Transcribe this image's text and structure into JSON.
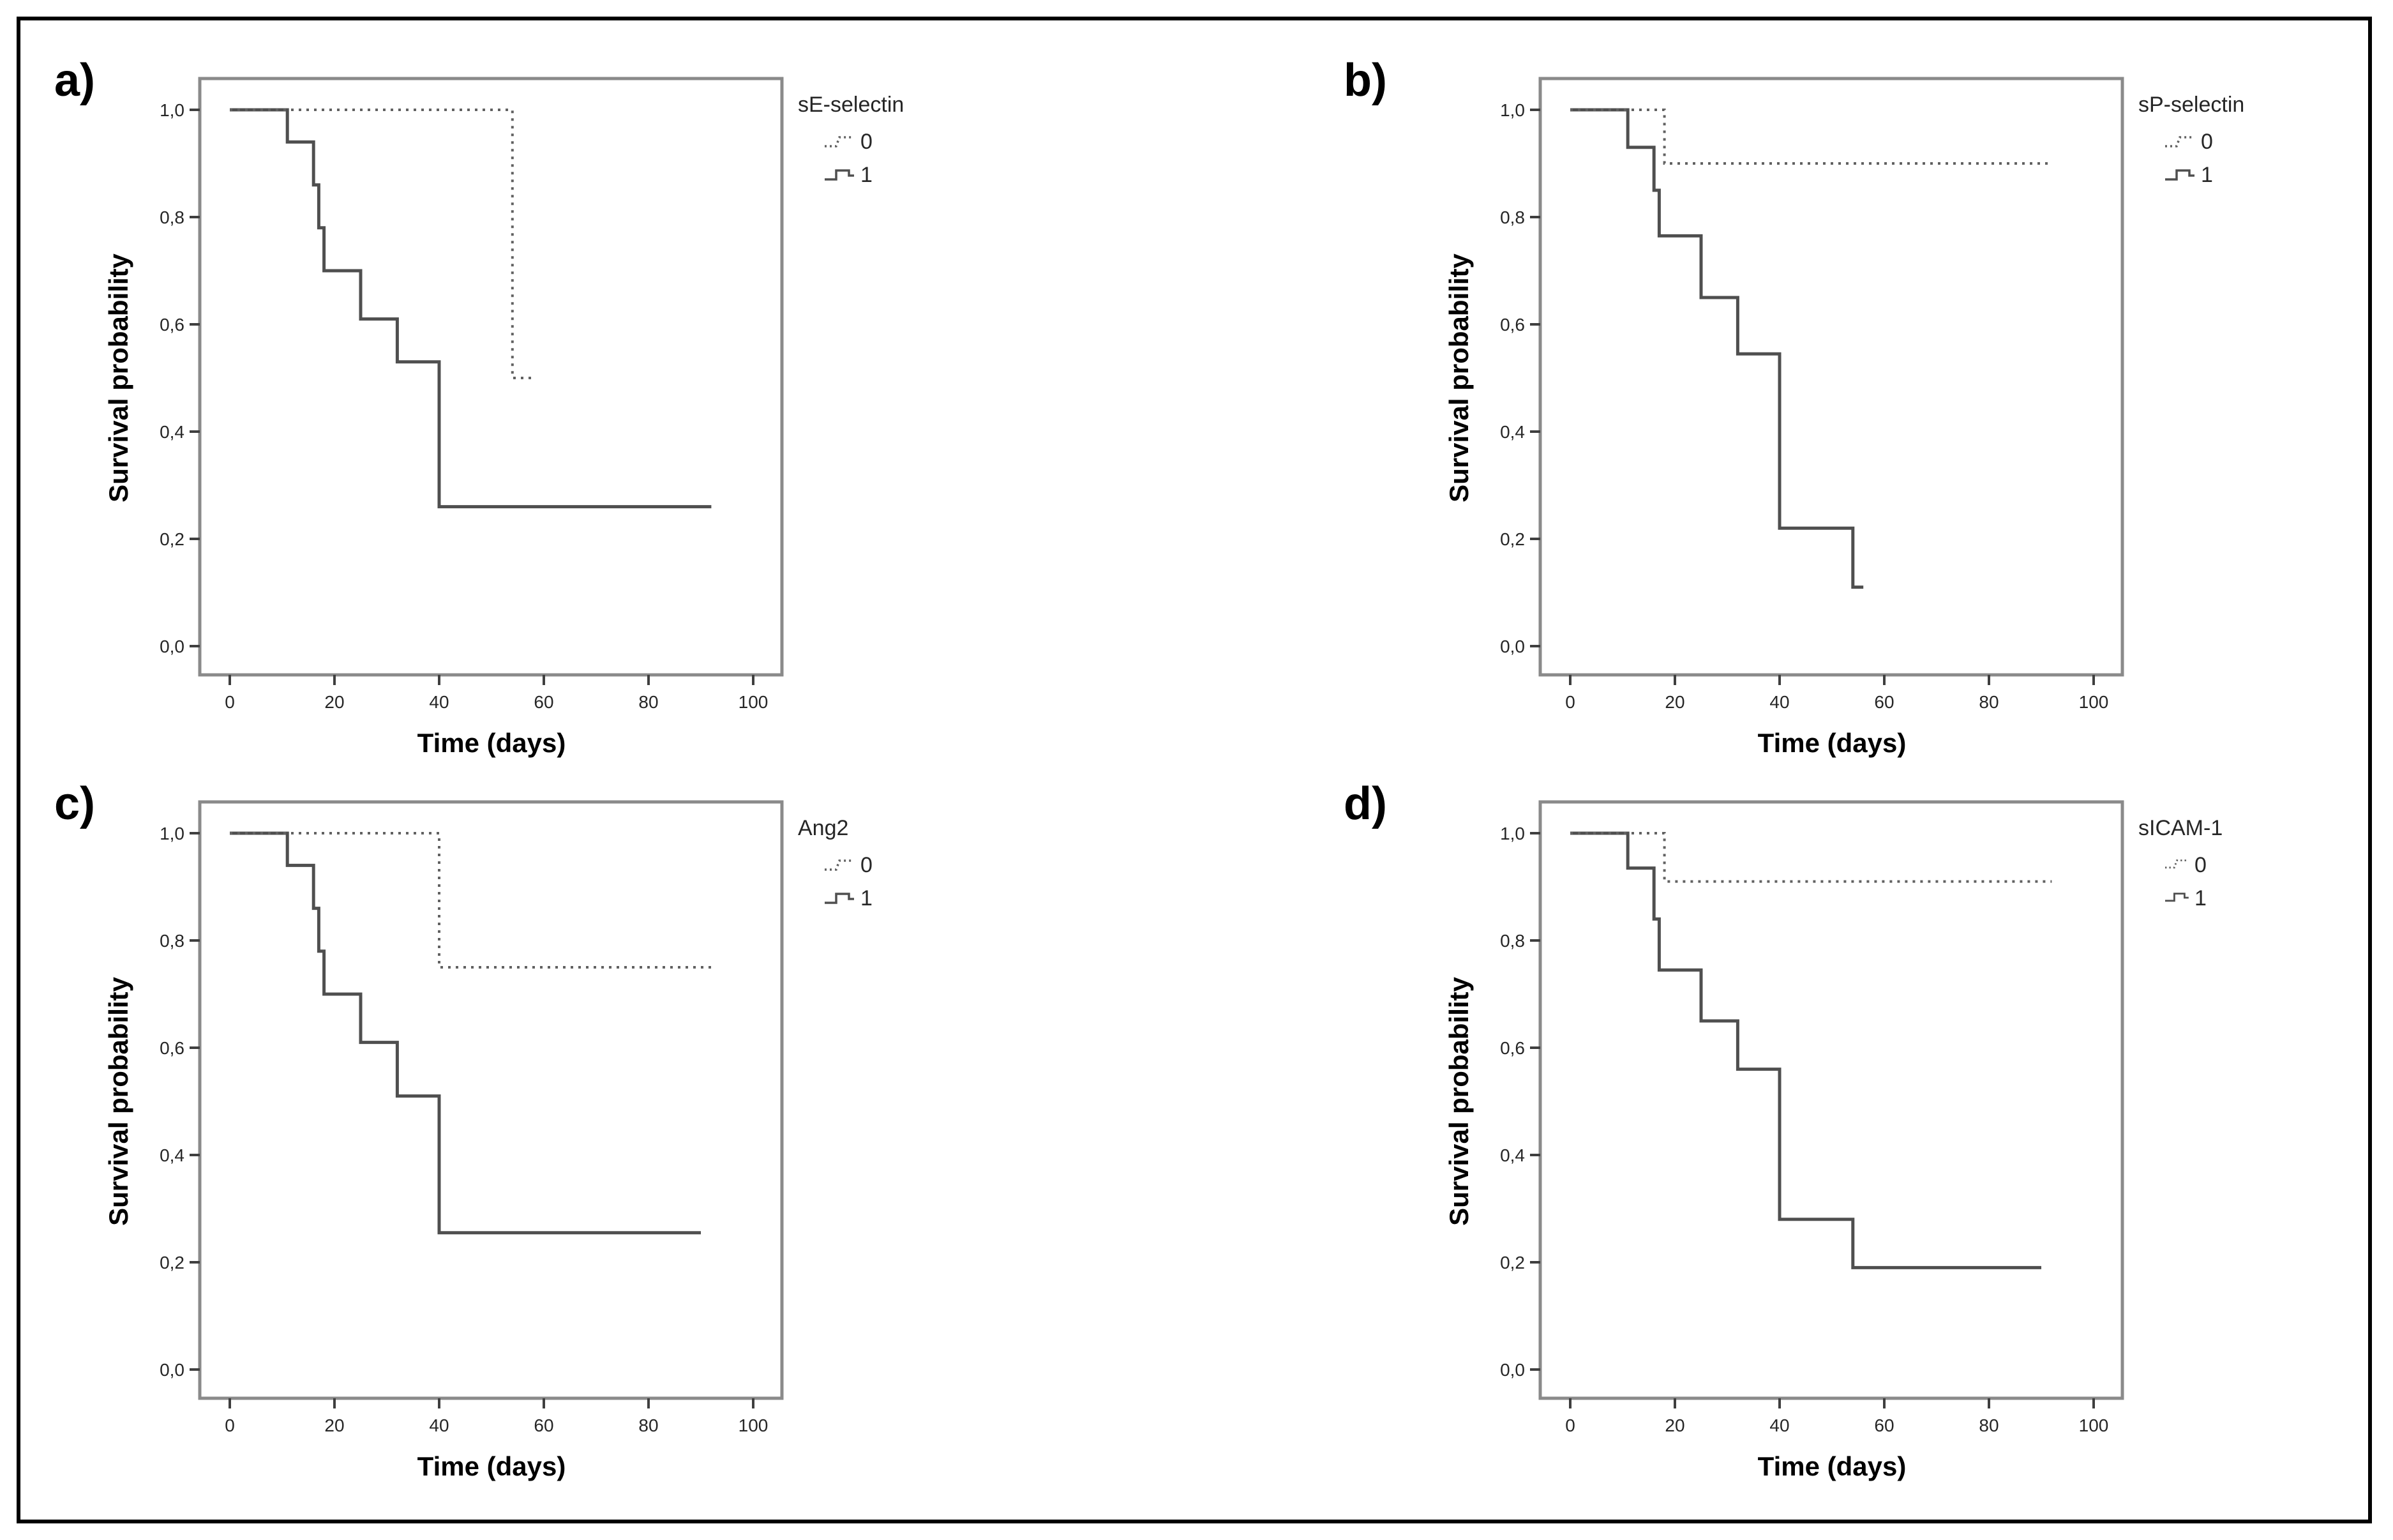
{
  "figure": {
    "description": "Kaplan-Meier survival curves, four panels",
    "background": "#ffffff",
    "border_color": "#000000"
  },
  "colors": {
    "curve_solid": "#4f4f4f",
    "curve_dotted": "#616161",
    "frame": "#8a8a8a",
    "tick": "#3f3f3f",
    "text": "#262626"
  },
  "chart_data": [
    {
      "panel_label": "a)",
      "type": "line",
      "subtype": "kaplan-meier-step",
      "title": "sE-selectin",
      "xlabel": "Time (days)",
      "ylabel": "Survival probability",
      "xticks": [
        0,
        20,
        40,
        60,
        80,
        100
      ],
      "ytick_labels": [
        "1,0",
        "0,8",
        "0,6",
        "0,4",
        "0,2",
        "0,0"
      ],
      "ytick_values": [
        1.0,
        0.8,
        0.6,
        0.4,
        0.2,
        0.0
      ],
      "xlim": [
        0,
        105
      ],
      "ylim": [
        0,
        1.05
      ],
      "grid": false,
      "legend_position": "right-top",
      "legend_compact": false,
      "legend": [
        {
          "label": "0",
          "style": "dotted"
        },
        {
          "label": "1",
          "style": "solid"
        }
      ],
      "series": [
        {
          "name": "1",
          "style": "solid",
          "points": [
            [
              0,
              1
            ],
            [
              11,
              1
            ],
            [
              11,
              0.94
            ],
            [
              16,
              0.94
            ],
            [
              16,
              0.86
            ],
            [
              17,
              0.86
            ],
            [
              17,
              0.78
            ],
            [
              18,
              0.78
            ],
            [
              18,
              0.7
            ],
            [
              25,
              0.7
            ],
            [
              25,
              0.61
            ],
            [
              32,
              0.61
            ],
            [
              32,
              0.53
            ],
            [
              40,
              0.53
            ],
            [
              40,
              0.26
            ],
            [
              92,
              0.26
            ]
          ]
        },
        {
          "name": "0",
          "style": "dotted",
          "points": [
            [
              0,
              1
            ],
            [
              54,
              1
            ],
            [
              54,
              0.5
            ],
            [
              58,
              0.5
            ]
          ]
        }
      ]
    },
    {
      "panel_label": "b)",
      "type": "line",
      "subtype": "kaplan-meier-step",
      "title": "sP-selectin",
      "xlabel": "Time (days)",
      "ylabel": "Survival probability",
      "xticks": [
        0,
        20,
        40,
        60,
        80,
        100
      ],
      "ytick_labels": [
        "1,0",
        "0,8",
        "0,6",
        "0,4",
        "0,2",
        "0,0"
      ],
      "ytick_values": [
        1.0,
        0.8,
        0.6,
        0.4,
        0.2,
        0.0
      ],
      "xlim": [
        0,
        105
      ],
      "ylim": [
        0,
        1.05
      ],
      "grid": false,
      "legend_position": "right-top",
      "legend_compact": false,
      "legend": [
        {
          "label": "0",
          "style": "dotted"
        },
        {
          "label": "1",
          "style": "solid"
        }
      ],
      "series": [
        {
          "name": "1",
          "style": "solid",
          "points": [
            [
              0,
              1
            ],
            [
              11,
              1
            ],
            [
              11,
              0.93
            ],
            [
              16,
              0.93
            ],
            [
              16,
              0.85
            ],
            [
              17,
              0.85
            ],
            [
              17,
              0.765
            ],
            [
              25,
              0.765
            ],
            [
              25,
              0.65
            ],
            [
              32,
              0.65
            ],
            [
              32,
              0.545
            ],
            [
              40,
              0.545
            ],
            [
              40,
              0.22
            ],
            [
              54,
              0.22
            ],
            [
              54,
              0.11
            ],
            [
              56,
              0.11
            ]
          ]
        },
        {
          "name": "0",
          "style": "dotted",
          "points": [
            [
              0,
              1
            ],
            [
              18,
              1
            ],
            [
              18,
              0.9
            ],
            [
              92,
              0.9
            ]
          ]
        }
      ]
    },
    {
      "panel_label": "c)",
      "type": "line",
      "subtype": "kaplan-meier-step",
      "title": "Ang2",
      "xlabel": "Time (days)",
      "ylabel": "Survival probability",
      "xticks": [
        0,
        20,
        40,
        60,
        80,
        100
      ],
      "ytick_labels": [
        "1,0",
        "0,8",
        "0,6",
        "0,4",
        "0,2",
        "0,0"
      ],
      "ytick_values": [
        1.0,
        0.8,
        0.6,
        0.4,
        0.2,
        0.0
      ],
      "xlim": [
        0,
        105
      ],
      "ylim": [
        0,
        1.05
      ],
      "grid": false,
      "legend_position": "right-top",
      "legend_compact": false,
      "legend": [
        {
          "label": "0",
          "style": "dotted"
        },
        {
          "label": "1",
          "style": "solid"
        }
      ],
      "series": [
        {
          "name": "1",
          "style": "solid",
          "points": [
            [
              0,
              1
            ],
            [
              11,
              1
            ],
            [
              11,
              0.94
            ],
            [
              16,
              0.94
            ],
            [
              16,
              0.86
            ],
            [
              17,
              0.86
            ],
            [
              17,
              0.78
            ],
            [
              18,
              0.78
            ],
            [
              18,
              0.7
            ],
            [
              25,
              0.7
            ],
            [
              25,
              0.61
            ],
            [
              32,
              0.61
            ],
            [
              32,
              0.51
            ],
            [
              40,
              0.51
            ],
            [
              40,
              0.255
            ],
            [
              90,
              0.255
            ]
          ]
        },
        {
          "name": "0",
          "style": "dotted",
          "points": [
            [
              0,
              1
            ],
            [
              40,
              1
            ],
            [
              40,
              0.75
            ],
            [
              92,
              0.75
            ]
          ]
        }
      ]
    },
    {
      "panel_label": "d)",
      "type": "line",
      "subtype": "kaplan-meier-step",
      "title": "sICAM-1",
      "xlabel": "Time (days)",
      "ylabel": "Survival probability",
      "xticks": [
        0,
        20,
        40,
        60,
        80,
        100
      ],
      "ytick_labels": [
        "1,0",
        "0,8",
        "0,6",
        "0,4",
        "0,2",
        "0,0"
      ],
      "ytick_values": [
        1.0,
        0.8,
        0.6,
        0.4,
        0.2,
        0.0
      ],
      "xlim": [
        0,
        105
      ],
      "ylim": [
        0,
        1.05
      ],
      "grid": false,
      "legend_position": "right-top",
      "legend_compact": true,
      "legend": [
        {
          "label": "0",
          "style": "dotted"
        },
        {
          "label": "1",
          "style": "solid"
        }
      ],
      "series": [
        {
          "name": "1",
          "style": "solid",
          "points": [
            [
              0,
              1
            ],
            [
              11,
              1
            ],
            [
              11,
              0.935
            ],
            [
              16,
              0.935
            ],
            [
              16,
              0.84
            ],
            [
              17,
              0.84
            ],
            [
              17,
              0.745
            ],
            [
              25,
              0.745
            ],
            [
              25,
              0.65
            ],
            [
              32,
              0.65
            ],
            [
              32,
              0.56
            ],
            [
              40,
              0.56
            ],
            [
              40,
              0.28
            ],
            [
              54,
              0.28
            ],
            [
              54,
              0.19
            ],
            [
              90,
              0.19
            ]
          ]
        },
        {
          "name": "0",
          "style": "dotted",
          "points": [
            [
              0,
              1
            ],
            [
              18,
              1
            ],
            [
              18,
              0.91
            ],
            [
              92,
              0.91
            ]
          ]
        }
      ]
    }
  ]
}
